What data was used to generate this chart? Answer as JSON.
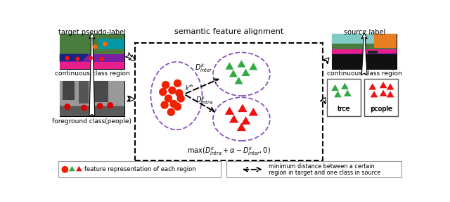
{
  "title_center": "semantic feature alignment",
  "title_left": "target pseudo-label",
  "title_right": "source label",
  "label_cont_left": "continuous class region",
  "label_fg_left": "foreground class(people)",
  "label_cont_right": "continuous class region",
  "label_tree": "trce",
  "label_people": "pcople",
  "bg_color": "#ffffff",
  "circle_color": "#8855bb",
  "red_dot_color": "#ee2200",
  "green_tri_color": "#33aa44",
  "red_tri_color": "#ee1111",
  "arrow_color": "#000000"
}
